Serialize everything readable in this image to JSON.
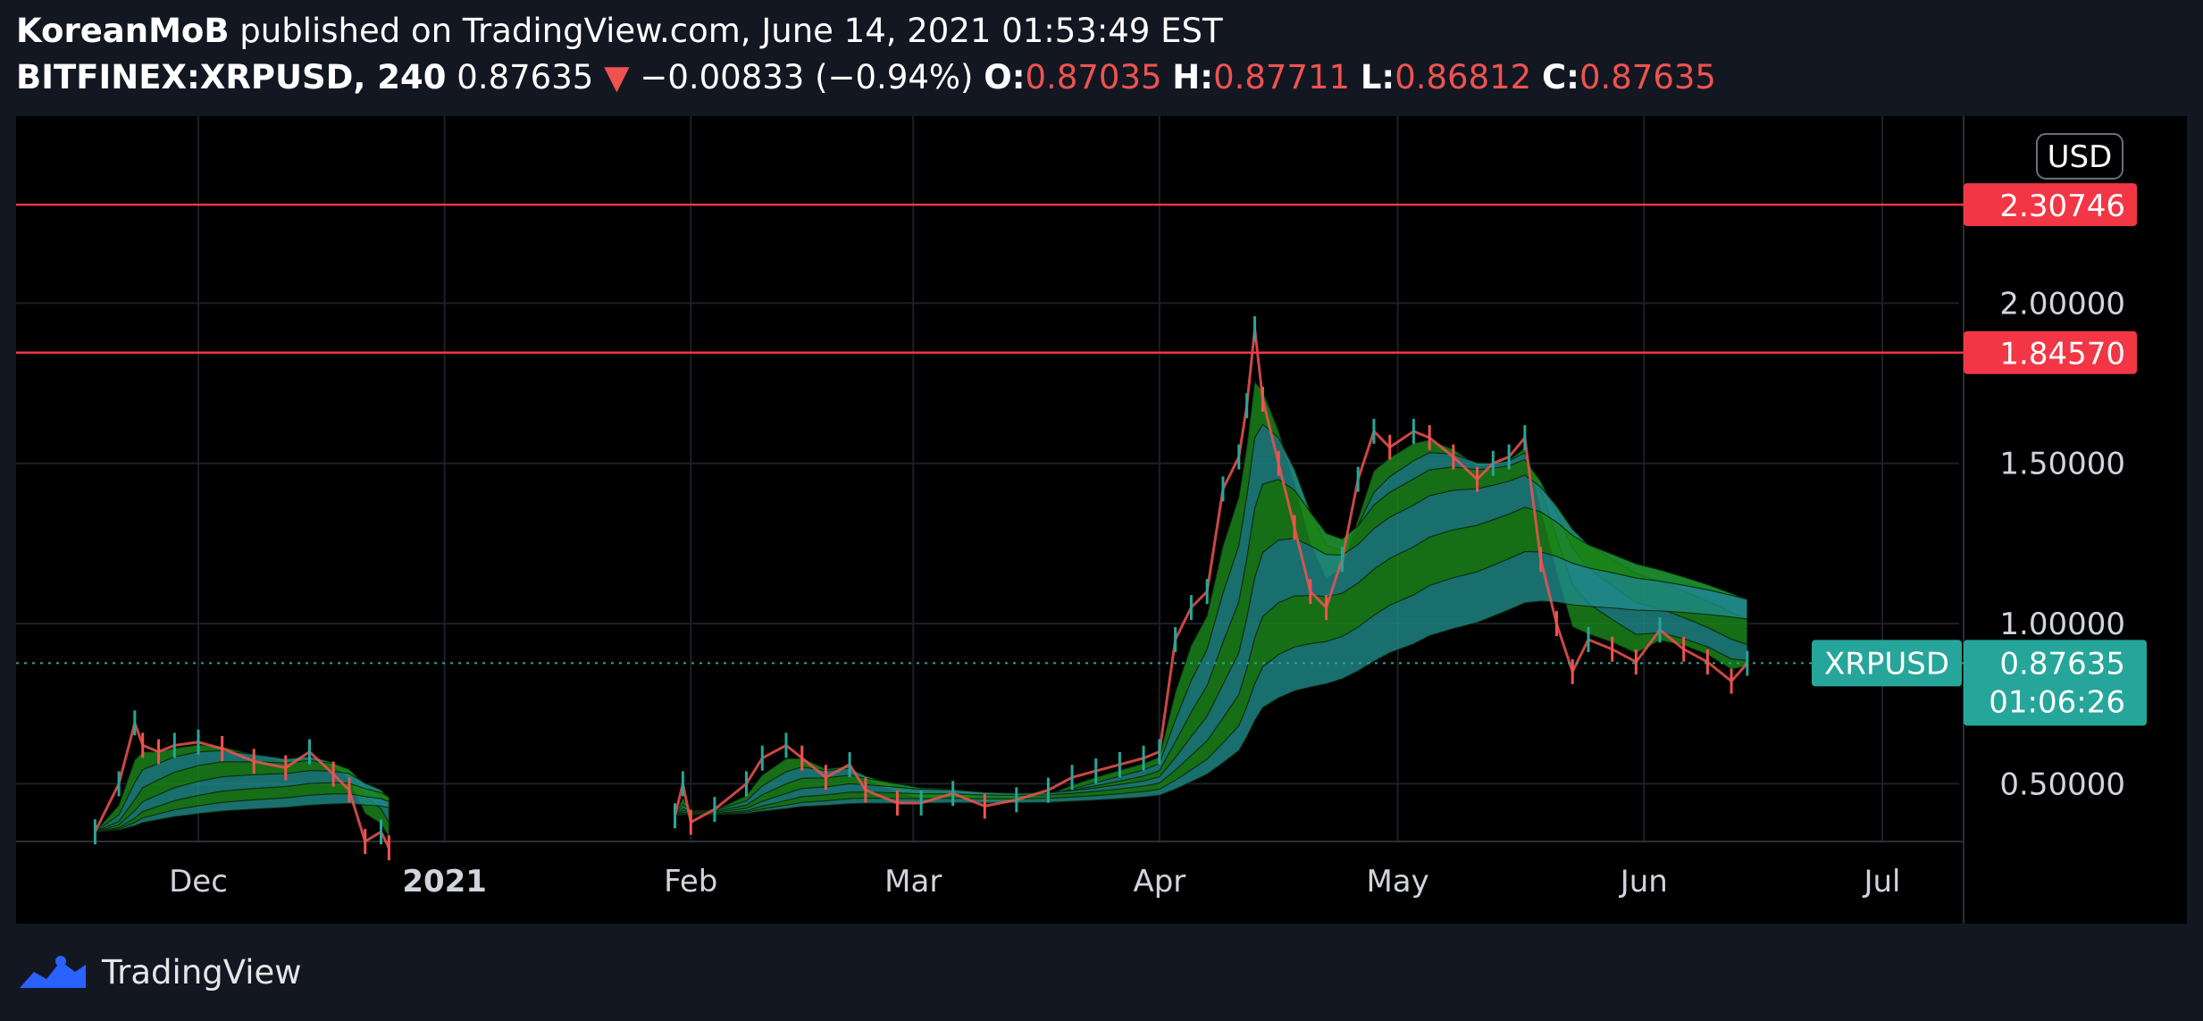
{
  "header": {
    "author": "KoreanMoB",
    "published_text": "published on TradingView.com, June 14, 2021 01:53:49 EST",
    "symbol": "BITFINEX:XRPUSD, 240",
    "last": "0.87635",
    "change_arrow": "▼",
    "change": "−0.00833 (−0.94%)",
    "o_label": "O:",
    "o_value": "0.87035",
    "h_label": "H:",
    "h_value": "0.87711",
    "l_label": "L:",
    "l_value": "0.86812",
    "c_label": "C:",
    "c_value": "0.87635"
  },
  "footer": {
    "brand": "TradingView"
  },
  "colors": {
    "background": "#000000",
    "page": "#131722",
    "down": "#ef5350",
    "up": "#26a69a",
    "ribbon_green": "#1b8a1b",
    "ribbon_teal": "#1f8a8a",
    "level_line": "#f23645"
  },
  "chart_data": {
    "type": "line",
    "symbol": "XRPUSD",
    "currency_label": "USD",
    "ylim": [
      0.32,
      2.5
    ],
    "y_ticks": [
      {
        "value": 0.5,
        "label": "0.50000"
      },
      {
        "value": 1.0,
        "label": "1.00000"
      },
      {
        "value": 1.5,
        "label": "1.50000"
      },
      {
        "value": 2.0,
        "label": "2.00000"
      }
    ],
    "x_ticks": [
      {
        "date": "2020-12-01",
        "label": "Dec",
        "bold": false
      },
      {
        "date": "2021-01-01",
        "label": "2021",
        "bold": true
      },
      {
        "date": "2021-02-01",
        "label": "Feb",
        "bold": false
      },
      {
        "date": "2021-03-01",
        "label": "Mar",
        "bold": false
      },
      {
        "date": "2021-04-01",
        "label": "Apr",
        "bold": false
      },
      {
        "date": "2021-05-01",
        "label": "May",
        "bold": false
      },
      {
        "date": "2021-06-01",
        "label": "Jun",
        "bold": false
      },
      {
        "date": "2021-07-01",
        "label": "Jul",
        "bold": false
      }
    ],
    "horizontal_levels": [
      {
        "value": 2.30746,
        "label": "2.30746"
      },
      {
        "value": 1.8457,
        "label": "1.84570"
      }
    ],
    "last_price": {
      "value": 0.87635,
      "label": "0.87635",
      "countdown": "01:06:26"
    },
    "series": [
      {
        "x": [
          "2020-11-18",
          "2020-11-21",
          "2020-11-23",
          "2020-11-24",
          "2020-11-26",
          "2020-11-28",
          "2020-12-01",
          "2020-12-04",
          "2020-12-08",
          "2020-12-12",
          "2020-12-15",
          "2020-12-18",
          "2020-12-20",
          "2020-12-22",
          "2020-12-24",
          "2020-12-25",
          "2021-01-30",
          "2021-01-31",
          "2021-02-01",
          "2021-02-04",
          "2021-02-08",
          "2021-02-10",
          "2021-02-13",
          "2021-02-15",
          "2021-02-18",
          "2021-02-21",
          "2021-02-23",
          "2021-02-27",
          "2021-03-02",
          "2021-03-06",
          "2021-03-10",
          "2021-03-14",
          "2021-03-18",
          "2021-03-21",
          "2021-03-24",
          "2021-03-27",
          "2021-03-30",
          "2021-04-01",
          "2021-04-03",
          "2021-04-05",
          "2021-04-07",
          "2021-04-09",
          "2021-04-11",
          "2021-04-12",
          "2021-04-13",
          "2021-04-14",
          "2021-04-16",
          "2021-04-18",
          "2021-04-20",
          "2021-04-22",
          "2021-04-24",
          "2021-04-26",
          "2021-04-28",
          "2021-04-30",
          "2021-05-03",
          "2021-05-05",
          "2021-05-08",
          "2021-05-11",
          "2021-05-13",
          "2021-05-15",
          "2021-05-17",
          "2021-05-19",
          "2021-05-21",
          "2021-05-23",
          "2021-05-25",
          "2021-05-28",
          "2021-05-31",
          "2021-06-03",
          "2021-06-06",
          "2021-06-09",
          "2021-06-12",
          "2021-06-14"
        ],
        "y": [
          0.35,
          0.5,
          0.69,
          0.62,
          0.6,
          0.62,
          0.63,
          0.61,
          0.57,
          0.55,
          0.6,
          0.53,
          0.48,
          0.32,
          0.35,
          0.3,
          0.4,
          0.5,
          0.38,
          0.42,
          0.5,
          0.58,
          0.62,
          0.58,
          0.52,
          0.56,
          0.48,
          0.44,
          0.44,
          0.47,
          0.43,
          0.45,
          0.48,
          0.52,
          0.54,
          0.56,
          0.58,
          0.6,
          0.95,
          1.05,
          1.1,
          1.42,
          1.52,
          1.68,
          1.92,
          1.7,
          1.5,
          1.3,
          1.1,
          1.05,
          1.2,
          1.45,
          1.6,
          1.55,
          1.6,
          1.58,
          1.52,
          1.45,
          1.5,
          1.52,
          1.58,
          1.2,
          1.0,
          0.85,
          0.95,
          0.92,
          0.88,
          0.98,
          0.92,
          0.88,
          0.82,
          0.876
        ]
      }
    ]
  }
}
